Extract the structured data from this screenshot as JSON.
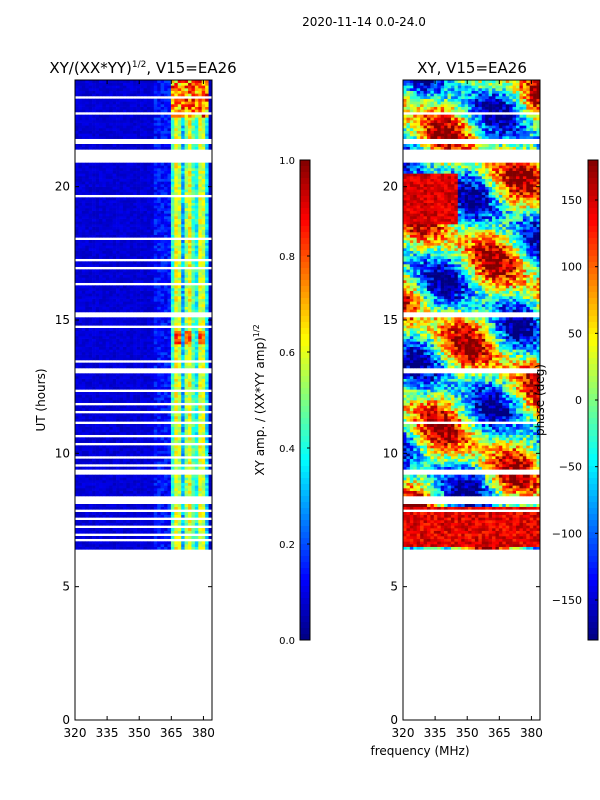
{
  "figure": {
    "suptitle": "2020-11-14 0.0-24.0",
    "xlabel": "frequency (MHz)"
  },
  "chart_data": [
    {
      "type": "heatmap",
      "title": "XY/(XX*YY)",
      "title_superscript": "1/2",
      "title_suffix": ", V15=EA26",
      "xlabel": "",
      "ylabel": "UT (hours)",
      "x_ticks": [
        320,
        335,
        350,
        365,
        380
      ],
      "y_ticks": [
        0,
        5,
        10,
        15,
        20
      ],
      "xlim": [
        320,
        384
      ],
      "ylim": [
        0,
        24
      ],
      "data_time_range": [
        6.4,
        24.0
      ],
      "gaps": [
        [
          21.0,
          21.4
        ],
        [
          21.6,
          21.8
        ],
        [
          20.9,
          21.0
        ],
        [
          19.6,
          19.7
        ],
        [
          18.0,
          18.1
        ],
        [
          17.2,
          17.3
        ],
        [
          16.9,
          17.0
        ],
        [
          16.3,
          16.4
        ],
        [
          15.1,
          15.3
        ],
        [
          14.7,
          14.8
        ],
        [
          13.4,
          13.5
        ],
        [
          13.0,
          13.2
        ],
        [
          12.3,
          12.4
        ],
        [
          11.8,
          11.9
        ],
        [
          11.1,
          11.2
        ],
        [
          11.5,
          11.6
        ],
        [
          10.6,
          10.7
        ],
        [
          10.3,
          10.4
        ],
        [
          9.8,
          9.9
        ],
        [
          9.5,
          9.6
        ],
        [
          9.2,
          9.4
        ],
        [
          8.1,
          8.4
        ],
        [
          7.8,
          7.9
        ],
        [
          7.5,
          7.6
        ],
        [
          7.2,
          7.3
        ],
        [
          6.9,
          7.0
        ],
        [
          6.7,
          6.8
        ],
        [
          22.7,
          22.8
        ],
        [
          23.3,
          23.4
        ]
      ],
      "colorbar": {
        "label": "XY amp. / (XX*YY amp)",
        "label_superscript": "1/2",
        "range": [
          0.0,
          1.0
        ],
        "ticks": [
          "0.0",
          "0.2",
          "0.4",
          "0.6",
          "0.8",
          "1.0"
        ],
        "colormap": "jet"
      }
    },
    {
      "type": "heatmap",
      "title": "XY, V15=EA26",
      "xlabel": "",
      "ylabel": "",
      "x_ticks": [
        320,
        335,
        350,
        365,
        380
      ],
      "y_ticks": [
        0,
        5,
        10,
        15,
        20
      ],
      "xlim": [
        320,
        384
      ],
      "ylim": [
        0,
        24
      ],
      "data_time_range": [
        6.4,
        24.0
      ],
      "gaps": [
        [
          21.0,
          21.4
        ],
        [
          21.6,
          21.8
        ],
        [
          20.9,
          21.0
        ],
        [
          22.7,
          22.8
        ],
        [
          15.1,
          15.3
        ],
        [
          13.0,
          13.2
        ],
        [
          11.1,
          11.2
        ],
        [
          9.2,
          9.4
        ],
        [
          8.1,
          8.4
        ],
        [
          7.8,
          7.9
        ]
      ],
      "colorbar": {
        "label": "phase (deg)",
        "range": [
          -180,
          180
        ],
        "ticks": [
          "−150",
          "−100",
          "−50",
          "0",
          "50",
          "100",
          "150"
        ],
        "tick_values": [
          -150,
          -100,
          -50,
          0,
          50,
          100,
          150
        ],
        "colormap": "jet"
      }
    }
  ]
}
